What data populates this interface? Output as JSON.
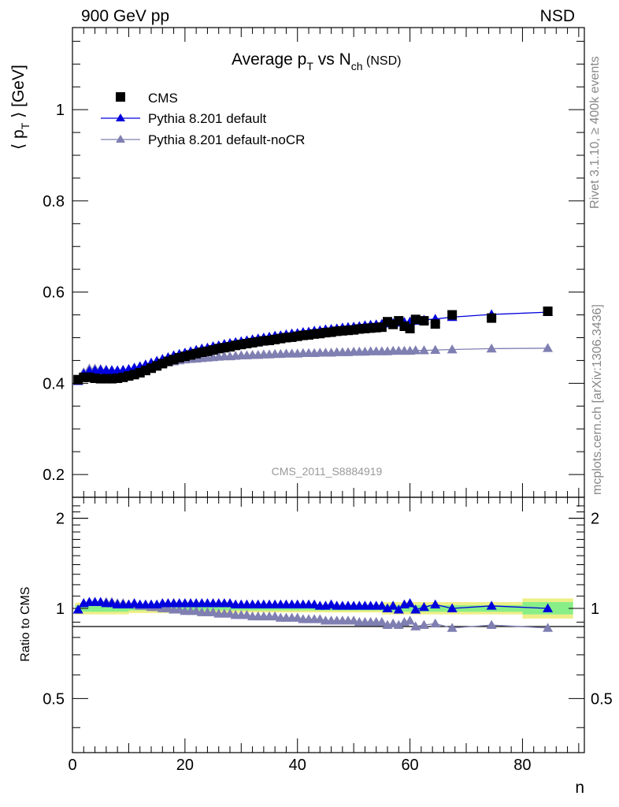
{
  "header": {
    "left": "900 GeV pp",
    "right": "NSD"
  },
  "side_labels": {
    "rivet": "Rivet 3.1.10, ≥ 400k events",
    "mcplots": "mcplots.cern.ch [arXiv:1306.3436]"
  },
  "chart_data": [
    {
      "type": "scatter",
      "title_main": "Average p",
      "title_sub_T": "T",
      "title_vs": " vs N",
      "title_sub_ch": "ch",
      "title_tail": " (NSD)",
      "ylabel_main": "⟨ p",
      "ylabel_sub": "T",
      "ylabel_tail": " ⟩ [GeV]",
      "watermark": "CMS_2011_S8884919",
      "xlim": [
        0,
        91
      ],
      "ylim": [
        0.15,
        1.18
      ],
      "yticks": [
        0.2,
        0.4,
        0.6,
        0.8,
        1
      ],
      "ytick_labels": [
        "0.2",
        "0.4",
        "0.6",
        "0.8",
        "1"
      ],
      "legend_position": "top-left",
      "series": [
        {
          "name": "CMS",
          "marker": "square",
          "color": "#000000",
          "x": [
            1,
            2,
            3,
            4,
            5,
            6,
            7,
            8,
            9,
            10,
            11,
            12,
            13,
            14,
            15,
            16,
            17,
            18,
            19,
            20,
            21,
            22,
            23,
            24,
            25,
            26,
            27,
            28,
            29,
            30,
            31,
            32,
            33,
            34,
            35,
            36,
            37,
            38,
            39,
            40,
            41,
            42,
            43,
            44,
            45,
            46,
            47,
            48,
            49,
            50,
            51,
            52,
            53,
            54,
            55,
            56,
            57,
            58,
            59,
            60,
            61,
            62.5,
            64.5,
            67.5,
            74.5,
            84.5
          ],
          "y": [
            0.408,
            0.413,
            0.413,
            0.411,
            0.41,
            0.41,
            0.41,
            0.411,
            0.413,
            0.416,
            0.419,
            0.423,
            0.428,
            0.433,
            0.438,
            0.443,
            0.448,
            0.452,
            0.456,
            0.459,
            0.462,
            0.465,
            0.468,
            0.47,
            0.473,
            0.476,
            0.478,
            0.48,
            0.483,
            0.485,
            0.487,
            0.489,
            0.491,
            0.493,
            0.494,
            0.496,
            0.498,
            0.5,
            0.501,
            0.503,
            0.505,
            0.506,
            0.508,
            0.509,
            0.511,
            0.512,
            0.514,
            0.515,
            0.516,
            0.517,
            0.519,
            0.52,
            0.521,
            0.522,
            0.523,
            0.535,
            0.529,
            0.537,
            0.525,
            0.52,
            0.54,
            0.537,
            0.53,
            0.55,
            0.543,
            0.558
          ]
        },
        {
          "name": "Pythia 8.201 default",
          "marker": "triangle",
          "color": "#0000dd",
          "x": [
            1,
            2,
            3,
            4,
            5,
            6,
            7,
            8,
            9,
            10,
            11,
            12,
            13,
            14,
            15,
            16,
            17,
            18,
            19,
            20,
            21,
            22,
            23,
            24,
            25,
            26,
            27,
            28,
            29,
            30,
            31,
            32,
            33,
            34,
            35,
            36,
            37,
            38,
            39,
            40,
            41,
            42,
            43,
            44,
            45,
            46,
            47,
            48,
            49,
            50,
            51,
            52,
            53,
            54,
            55,
            56,
            57,
            58,
            59,
            60,
            61,
            62.5,
            64.5,
            67.5,
            74.5,
            84.5
          ],
          "y": [
            0.405,
            0.421,
            0.427,
            0.428,
            0.429,
            0.428,
            0.428,
            0.428,
            0.429,
            0.431,
            0.434,
            0.437,
            0.441,
            0.445,
            0.449,
            0.453,
            0.457,
            0.461,
            0.464,
            0.467,
            0.47,
            0.473,
            0.476,
            0.478,
            0.481,
            0.483,
            0.486,
            0.488,
            0.49,
            0.492,
            0.494,
            0.496,
            0.498,
            0.5,
            0.502,
            0.504,
            0.505,
            0.507,
            0.509,
            0.51,
            0.512,
            0.513,
            0.515,
            0.516,
            0.518,
            0.519,
            0.52,
            0.522,
            0.523,
            0.524,
            0.525,
            0.527,
            0.528,
            0.529,
            0.53,
            0.531,
            0.532,
            0.533,
            0.534,
            0.535,
            0.537,
            0.539,
            0.541,
            0.545,
            0.551,
            0.556
          ]
        },
        {
          "name": "Pythia 8.201 default-noCR",
          "marker": "triangle",
          "color": "#7f7fb2",
          "x": [
            1,
            2,
            3,
            4,
            5,
            6,
            7,
            8,
            9,
            10,
            11,
            12,
            13,
            14,
            15,
            16,
            17,
            18,
            19,
            20,
            21,
            22,
            23,
            24,
            25,
            26,
            27,
            28,
            29,
            30,
            31,
            32,
            33,
            34,
            35,
            36,
            37,
            38,
            39,
            40,
            41,
            42,
            43,
            44,
            45,
            46,
            47,
            48,
            49,
            50,
            51,
            52,
            53,
            54,
            55,
            56,
            57,
            58,
            59,
            60,
            61,
            62.5,
            64.5,
            67.5,
            74.5,
            84.5
          ],
          "y": [
            0.405,
            0.424,
            0.432,
            0.432,
            0.431,
            0.43,
            0.429,
            0.428,
            0.428,
            0.429,
            0.43,
            0.432,
            0.435,
            0.438,
            0.441,
            0.444,
            0.446,
            0.448,
            0.45,
            0.452,
            0.453,
            0.454,
            0.455,
            0.456,
            0.457,
            0.458,
            0.459,
            0.459,
            0.46,
            0.461,
            0.461,
            0.462,
            0.462,
            0.463,
            0.463,
            0.464,
            0.464,
            0.465,
            0.465,
            0.465,
            0.466,
            0.466,
            0.466,
            0.467,
            0.467,
            0.467,
            0.468,
            0.468,
            0.468,
            0.469,
            0.469,
            0.469,
            0.47,
            0.47,
            0.47,
            0.47,
            0.471,
            0.471,
            0.471,
            0.471,
            0.472,
            0.472,
            0.473,
            0.474,
            0.476,
            0.477
          ]
        }
      ]
    },
    {
      "type": "scatter",
      "ylabel": "Ratio to CMS",
      "xlabel": "n",
      "xlim": [
        0,
        91
      ],
      "ylim": [
        0.33,
        2.35
      ],
      "y_scale": "log",
      "xticks": [
        0,
        20,
        40,
        60,
        80
      ],
      "xtick_labels": [
        "0",
        "20",
        "40",
        "60",
        "80"
      ],
      "yticks": [
        0.5,
        1,
        2
      ],
      "ytick_labels": [
        "0.5",
        "1",
        "2"
      ],
      "uncertainty_bands": {
        "green_color": "#88ee88",
        "yellow_color": "#eeee88",
        "segments": [
          {
            "x": [
              0.5,
              10
            ],
            "green": [
              0.975,
              1.025
            ],
            "yellow": [
              0.955,
              1.045
            ]
          },
          {
            "x": [
              10,
              30
            ],
            "green": [
              0.985,
              1.015
            ],
            "yellow": [
              0.965,
              1.035
            ]
          },
          {
            "x": [
              30,
              55
            ],
            "green": [
              0.985,
              1.015
            ],
            "yellow": [
              0.97,
              1.03
            ]
          },
          {
            "x": [
              55,
              70
            ],
            "green": [
              0.975,
              1.025
            ],
            "yellow": [
              0.955,
              1.05
            ]
          },
          {
            "x": [
              70,
              80
            ],
            "green": [
              0.975,
              1.025
            ],
            "yellow": [
              0.955,
              1.05
            ]
          },
          {
            "x": [
              80,
              89
            ],
            "green": [
              0.955,
              1.05
            ],
            "yellow": [
              0.925,
              1.08
            ]
          }
        ]
      },
      "series": [
        {
          "name": "Pythia 8.201 default",
          "marker": "triangle",
          "color": "#0000dd",
          "x": [
            1,
            2,
            3,
            4,
            5,
            6,
            7,
            8,
            9,
            10,
            11,
            12,
            13,
            14,
            15,
            16,
            17,
            18,
            19,
            20,
            21,
            22,
            23,
            24,
            25,
            26,
            27,
            28,
            29,
            30,
            31,
            32,
            33,
            34,
            35,
            36,
            37,
            38,
            39,
            40,
            41,
            42,
            43,
            44,
            45,
            46,
            47,
            48,
            49,
            50,
            51,
            52,
            53,
            54,
            55,
            56,
            57,
            58,
            59,
            60,
            61,
            62.5,
            64.5,
            67.5,
            74.5,
            84.5
          ],
          "y": [
            0.99,
            1.04,
            1.05,
            1.05,
            1.05,
            1.04,
            1.04,
            1.03,
            1.03,
            1.03,
            1.04,
            1.03,
            1.03,
            1.03,
            1.03,
            1.04,
            1.04,
            1.04,
            1.04,
            1.04,
            1.04,
            1.04,
            1.04,
            1.04,
            1.04,
            1.04,
            1.04,
            1.04,
            1.03,
            1.03,
            1.03,
            1.03,
            1.03,
            1.03,
            1.03,
            1.03,
            1.03,
            1.03,
            1.03,
            1.03,
            1.03,
            1.03,
            1.03,
            1.02,
            1.02,
            1.03,
            1.02,
            1.02,
            1.02,
            1.02,
            1.02,
            1.02,
            1.02,
            1.02,
            1.02,
            1.0,
            1.02,
            0.99,
            1.03,
            1.04,
            0.99,
            1.01,
            1.03,
            1.0,
            1.02,
            1.0
          ]
        },
        {
          "name": "Pythia 8.201 default-noCR",
          "marker": "triangle",
          "color": "#7f7fb2",
          "x": [
            1,
            2,
            3,
            4,
            5,
            6,
            7,
            8,
            9,
            10,
            11,
            12,
            13,
            14,
            15,
            16,
            17,
            18,
            19,
            20,
            21,
            22,
            23,
            24,
            25,
            26,
            27,
            28,
            29,
            30,
            31,
            32,
            33,
            34,
            35,
            36,
            37,
            38,
            39,
            40,
            41,
            42,
            43,
            44,
            45,
            46,
            47,
            48,
            49,
            50,
            51,
            52,
            53,
            54,
            55,
            56,
            57,
            58,
            59,
            60,
            61,
            62.5,
            64.5,
            67.5,
            74.5,
            84.5
          ],
          "y": [
            0.99,
            1.04,
            1.05,
            1.05,
            1.05,
            1.05,
            1.05,
            1.04,
            1.04,
            1.03,
            1.03,
            1.02,
            1.02,
            1.01,
            1.01,
            1.0,
            1.0,
            0.99,
            0.99,
            0.98,
            0.98,
            0.98,
            0.97,
            0.97,
            0.97,
            0.96,
            0.96,
            0.96,
            0.95,
            0.95,
            0.95,
            0.94,
            0.94,
            0.94,
            0.94,
            0.94,
            0.93,
            0.93,
            0.93,
            0.93,
            0.92,
            0.92,
            0.92,
            0.92,
            0.91,
            0.91,
            0.91,
            0.91,
            0.91,
            0.91,
            0.9,
            0.9,
            0.9,
            0.9,
            0.9,
            0.88,
            0.89,
            0.88,
            0.9,
            0.91,
            0.87,
            0.88,
            0.89,
            0.86,
            0.88,
            0.86
          ]
        }
      ]
    }
  ]
}
